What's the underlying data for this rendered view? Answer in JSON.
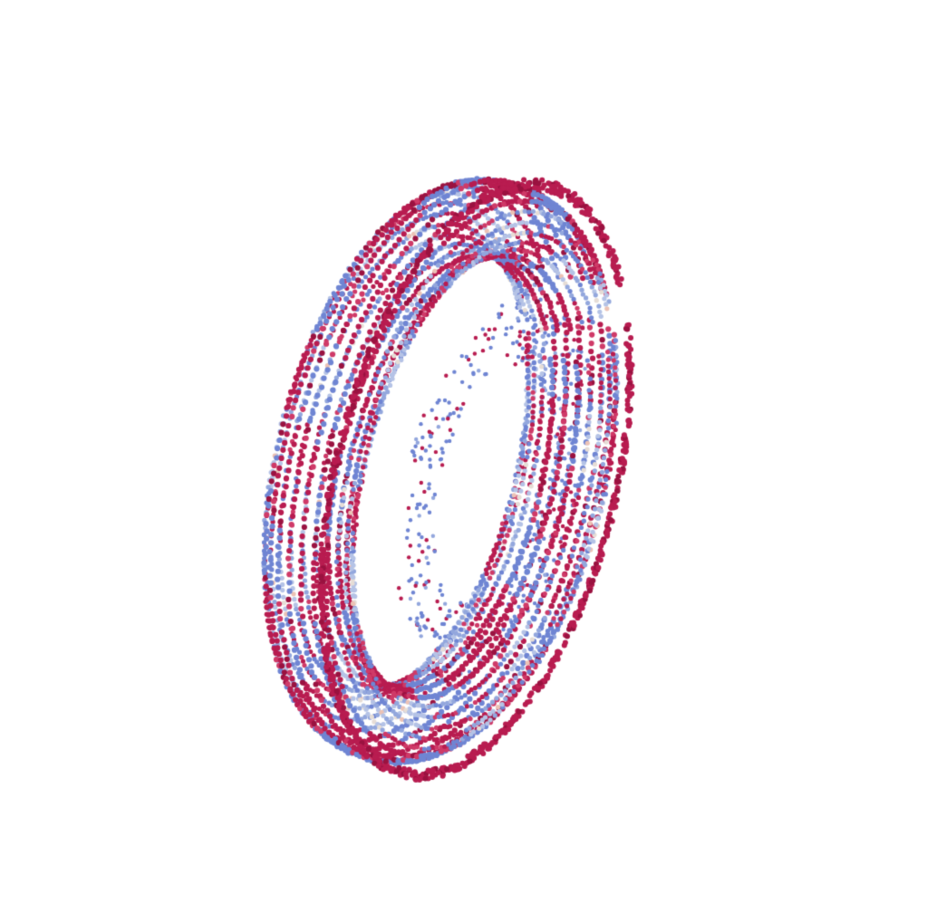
{
  "scene": {
    "subject": "point-cloud-torus-ring",
    "background_color": "#ffffff",
    "palette": {
      "crimson": "#b81c50",
      "crimson_dark": "#9a1240",
      "crimson_light": "#cf3a68",
      "blue": "#6f85d3",
      "blue_light": "#93a7dd",
      "blue_pale": "#b5c3e6",
      "neutral_pale": "#e6ddd6",
      "pink_pale": "#ecc2b5"
    }
  }
}
